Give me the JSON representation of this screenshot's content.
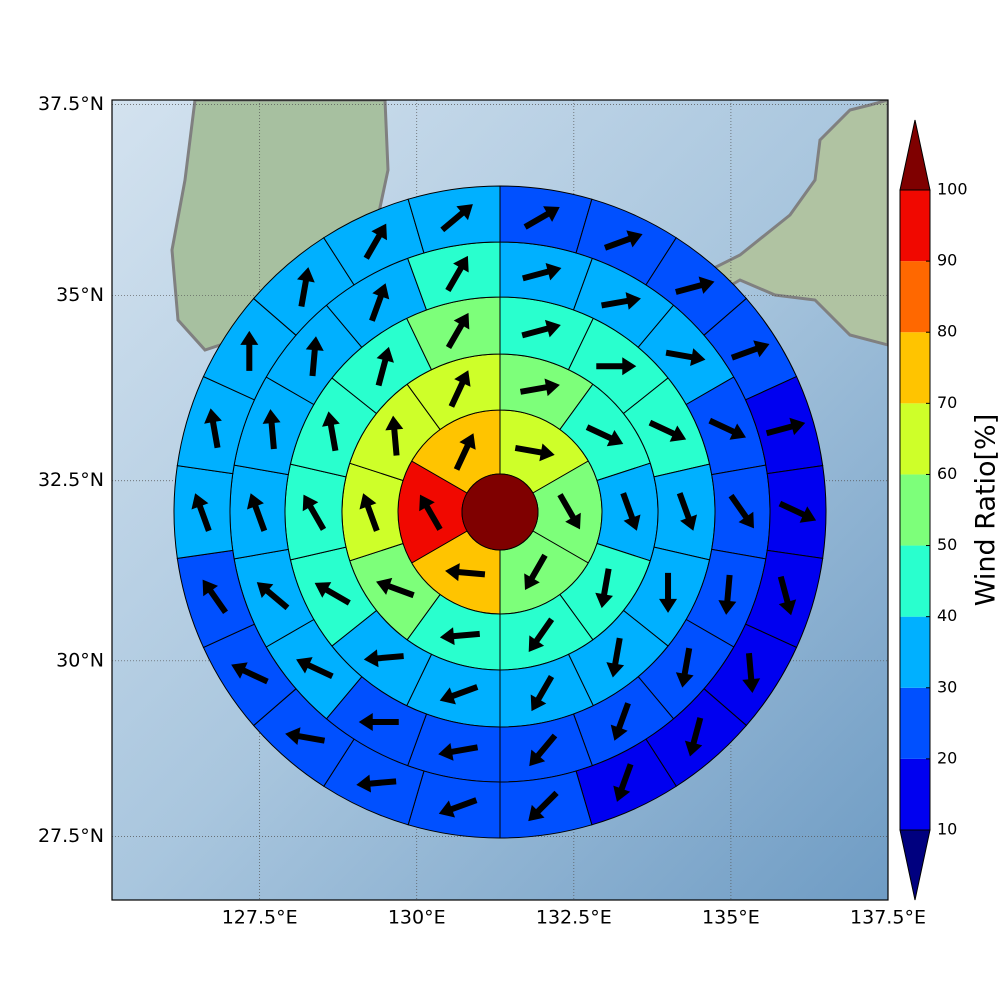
{
  "chart_data": {
    "type": "polar_grid_map",
    "xlim": [
      125.15,
      137.5
    ],
    "ylim": [
      26.58,
      37.56
    ],
    "xticks": [
      {
        "value": 127.5,
        "label": "127.5°E"
      },
      {
        "value": 130,
        "label": "130°E"
      },
      {
        "value": 132.5,
        "label": "132.5°E"
      },
      {
        "value": 135,
        "label": "135°E"
      },
      {
        "value": 137.5,
        "label": "137.5°E"
      }
    ],
    "yticks": [
      {
        "value": 27.5,
        "label": "27.5°N"
      },
      {
        "value": 30,
        "label": "30°N"
      },
      {
        "value": 32.5,
        "label": "32.5°N"
      },
      {
        "value": 35,
        "label": "35°N"
      },
      {
        "value": 37.5,
        "label": "37.5°N"
      }
    ],
    "grid": true,
    "center_value": 105,
    "rings": [
      {
        "values": [
          65,
          55,
          55,
          75,
          95,
          75
        ],
        "arrow_directions": [
          100,
          150,
          210,
          275,
          330,
          25
        ]
      },
      {
        "values": [
          55,
          45,
          35,
          45,
          45,
          45,
          55,
          65,
          65,
          65
        ],
        "arrow_directions": [
          80,
          115,
          160,
          190,
          215,
          265,
          290,
          340,
          355,
          25
        ]
      },
      {
        "values": [
          45,
          45,
          45,
          35,
          35,
          35,
          35,
          35,
          35,
          45,
          45,
          45,
          45,
          55
        ],
        "arrow_directions": [
          75,
          90,
          115,
          160,
          180,
          190,
          210,
          250,
          265,
          300,
          330,
          350,
          15,
          30
        ]
      },
      {
        "values": [
          35,
          35,
          35,
          25,
          25,
          25,
          25,
          25,
          25,
          25,
          25,
          35,
          35,
          35,
          35,
          35,
          35,
          45
        ],
        "arrow_directions": [
          75,
          80,
          100,
          115,
          145,
          185,
          190,
          200,
          220,
          260,
          270,
          295,
          310,
          340,
          355,
          5,
          20,
          30
        ]
      },
      {
        "values": [
          25,
          25,
          25,
          25,
          15,
          15,
          15,
          15,
          15,
          15,
          25,
          25,
          25,
          25,
          25,
          25,
          35,
          35,
          35,
          35,
          35,
          35
        ],
        "arrow_directions": [
          60,
          70,
          75,
          70,
          75,
          115,
          165,
          175,
          195,
          200,
          225,
          250,
          265,
          280,
          295,
          325,
          340,
          350,
          0,
          10,
          30,
          50
        ]
      }
    ],
    "colorbar": {
      "label": "Wind Ratio[%]",
      "levels": [
        10,
        20,
        30,
        40,
        50,
        60,
        70,
        80,
        90,
        100
      ],
      "colors": [
        "#00007f",
        "#0000f0",
        "#0050ff",
        "#00b0ff",
        "#29ffce",
        "#7dff7a",
        "#ceff29",
        "#ffc400",
        "#ff6800",
        "#f10800",
        "#7f0000"
      ],
      "extend": "both"
    }
  }
}
